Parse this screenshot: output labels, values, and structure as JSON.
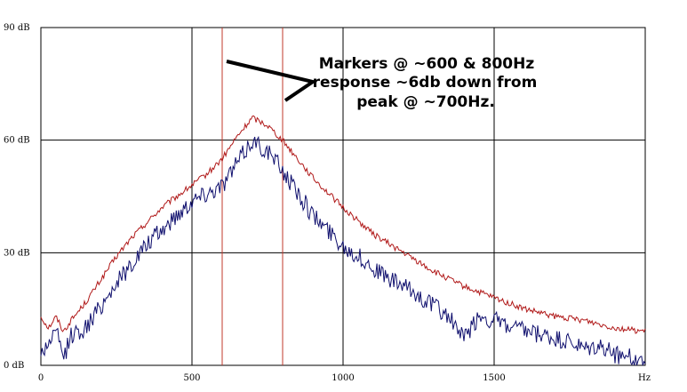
{
  "chart_data": {
    "type": "line",
    "title": "",
    "xlabel": "",
    "ylabel": "",
    "x_unit_label": "Hz",
    "xlim": [
      0,
      2000
    ],
    "ylim": [
      0,
      90
    ],
    "grid": true,
    "x_ticks": [
      {
        "value": 0,
        "label": "0"
      },
      {
        "value": 500,
        "label": "500"
      },
      {
        "value": 1000,
        "label": "1000"
      },
      {
        "value": 1500,
        "label": "1500"
      }
    ],
    "y_ticks": [
      {
        "value": 0,
        "label": "0 dB"
      },
      {
        "value": 30,
        "label": "30 dB"
      },
      {
        "value": 60,
        "label": "60 dB"
      },
      {
        "value": 90,
        "label": "90 dB"
      }
    ],
    "markers": [
      600,
      800
    ],
    "annotation_lines": [
      "Markers @ ~600 & 800Hz",
      "response ~6db down from",
      "peak @ ~700Hz."
    ],
    "series": [
      {
        "color": "#b01818",
        "x": [
          0,
          25,
          50,
          75,
          100,
          150,
          200,
          250,
          300,
          350,
          400,
          450,
          500,
          550,
          600,
          650,
          700,
          750,
          800,
          850,
          900,
          950,
          1000,
          1100,
          1200,
          1300,
          1400,
          1500,
          1600,
          1700,
          1800,
          1900,
          2000
        ],
        "y": [
          13,
          10,
          13,
          9,
          12,
          17,
          23,
          29,
          34,
          38,
          42,
          45,
          48,
          51,
          55,
          61,
          66,
          64,
          60,
          55,
          50,
          46,
          42,
          35,
          30,
          25,
          21,
          18,
          15,
          13,
          12,
          10,
          9
        ]
      },
      {
        "color": "#10106e",
        "x": [
          0,
          25,
          50,
          75,
          100,
          150,
          200,
          250,
          300,
          350,
          400,
          450,
          500,
          550,
          600,
          650,
          700,
          750,
          800,
          850,
          900,
          950,
          1000,
          1050,
          1100,
          1150,
          1200,
          1300,
          1350,
          1400,
          1450,
          1500,
          1550,
          1600,
          1650,
          1700,
          1750,
          1800,
          1850,
          1900,
          1950,
          2000
        ],
        "y": [
          3,
          6,
          9,
          2,
          8,
          10,
          16,
          22,
          27,
          32,
          36,
          40,
          44,
          46,
          48,
          54,
          60,
          57,
          52,
          46,
          40,
          36,
          32,
          29,
          26,
          23,
          21,
          16,
          13,
          7,
          13,
          12,
          10,
          9,
          8,
          7,
          6,
          4,
          5,
          3,
          2,
          1
        ]
      }
    ]
  }
}
